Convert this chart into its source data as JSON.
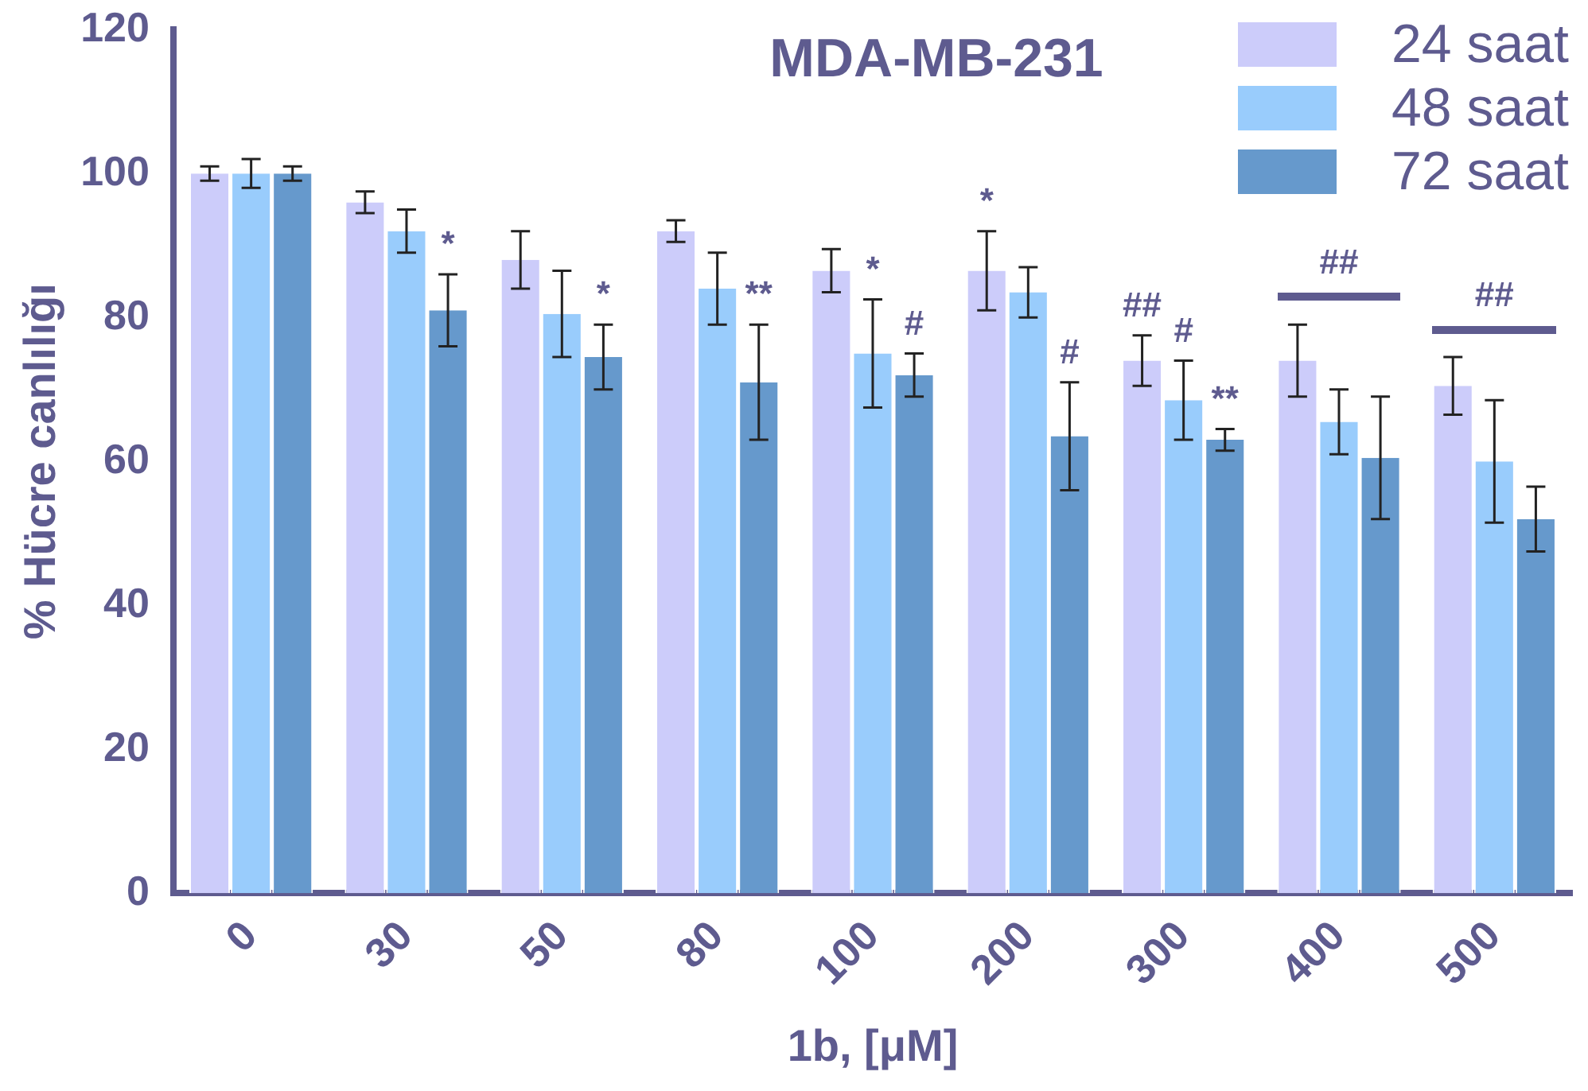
{
  "chart_data": {
    "type": "bar",
    "title": "MDA-MB-231",
    "xlabel": "1b, [μM]",
    "ylabel": "% Hücre canlılığı",
    "categories": [
      "0",
      "30",
      "50",
      "80",
      "100",
      "200",
      "300",
      "400",
      "500"
    ],
    "series": [
      {
        "name": "24 saat",
        "color": "#ccccfa",
        "values": [
          100,
          96,
          88,
          92,
          86.5,
          86.5,
          74,
          74,
          70.5
        ],
        "errors": [
          1,
          1.5,
          4,
          1.5,
          3,
          5.5,
          3.5,
          5,
          4
        ]
      },
      {
        "name": "48 saat",
        "color": "#99ccfc",
        "values": [
          100,
          92,
          80.5,
          84,
          75,
          83.5,
          68.5,
          65.5,
          60
        ],
        "errors": [
          2,
          3,
          6,
          5,
          7.5,
          3.5,
          5.5,
          4.5,
          8.5
        ]
      },
      {
        "name": "72 saat",
        "color": "#6699cc",
        "values": [
          100,
          81,
          74.5,
          71,
          72,
          63.5,
          63,
          60.5,
          52
        ],
        "errors": [
          1,
          5,
          4.5,
          8,
          3,
          7.5,
          1.5,
          8.5,
          4.5
        ]
      }
    ],
    "ylim": [
      0,
      120
    ],
    "yticks": [
      0,
      20,
      40,
      60,
      80,
      100,
      120
    ],
    "grid": false,
    "legend": "top right",
    "annotations": [
      {
        "text": "*",
        "x": "30",
        "y": 86
      },
      {
        "text": "*",
        "x": "50",
        "y": 79
      },
      {
        "text": "**",
        "x": "80",
        "y": 79
      },
      {
        "text": "*",
        "x": "100",
        "y": 82.5
      },
      {
        "text": "#",
        "x": "100",
        "y": 75
      },
      {
        "text": "*",
        "x": "200",
        "y": 86.5
      },
      {
        "text": "#",
        "x": "200",
        "y": 71
      },
      {
        "text": "##",
        "x": "300",
        "y": 77.5
      },
      {
        "text": "#",
        "x": "300",
        "y": 74
      },
      {
        "text": "**",
        "x": "300",
        "y": 64.5
      },
      "##",
      "##"
    ]
  }
}
